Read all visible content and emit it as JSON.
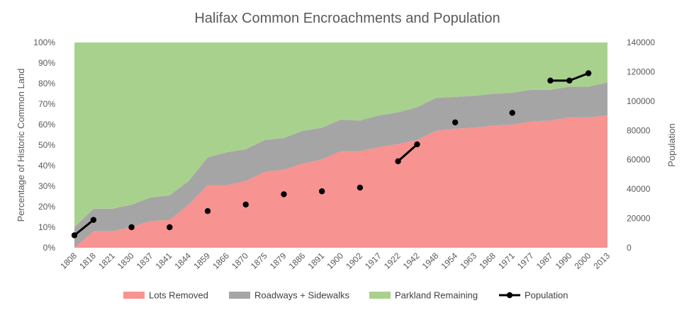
{
  "chart_data": {
    "type": "area",
    "title": "Halifax Common Encroachments and Population",
    "xlabel": "",
    "ylabel": "Percentage of Historic Common Land",
    "y2label": "Population",
    "categories": [
      "1808",
      "1818",
      "1821",
      "1830",
      "1837",
      "1841",
      "1844",
      "1859",
      "1866",
      "1870",
      "1875",
      "1879",
      "1886",
      "1891",
      "1900",
      "1902",
      "1917",
      "1922",
      "1942",
      "1948",
      "1954",
      "1963",
      "1968",
      "1971",
      "1977",
      "1987",
      "1990",
      "2000",
      "2013"
    ],
    "ylim": [
      0,
      100
    ],
    "y2lim": [
      0,
      140000
    ],
    "yticks": [
      "0%",
      "10%",
      "20%",
      "30%",
      "40%",
      "50%",
      "60%",
      "70%",
      "80%",
      "90%",
      "100%"
    ],
    "y2ticks": [
      "0",
      "20000",
      "40000",
      "60000",
      "80000",
      "100000",
      "120000",
      "140000"
    ],
    "series": [
      {
        "name": "Lots Removed",
        "color": "#F79391",
        "kind": "stacked-area",
        "values": [
          0,
          8,
          8,
          10,
          13,
          13.5,
          21,
          30.5,
          30.5,
          32.5,
          37,
          38,
          41,
          43,
          47,
          47,
          49,
          50.5,
          52.5,
          57,
          58,
          58.5,
          59.5,
          60,
          61.5,
          62,
          63.5,
          63.5,
          64.5
        ]
      },
      {
        "name": "Roadways + Sidewalks",
        "color": "#A5A5A5",
        "kind": "stacked-area",
        "values": [
          10,
          11,
          11,
          11,
          11.5,
          12,
          11.5,
          13.5,
          16,
          15.5,
          15.5,
          15.5,
          16,
          15.5,
          15.5,
          15,
          15.5,
          15.5,
          16,
          16,
          15.5,
          15.5,
          15.5,
          15.5,
          15.5,
          15,
          15,
          15,
          16
        ]
      },
      {
        "name": "Parkland Remaining",
        "color": "#A9D18E",
        "kind": "stacked-area",
        "values": [
          90,
          81,
          81,
          79,
          75.5,
          74.5,
          67.5,
          56,
          53.5,
          52,
          47.5,
          46.5,
          43,
          41.5,
          37.5,
          38,
          35.5,
          34,
          31.5,
          27,
          26.5,
          26,
          25,
          24.5,
          23,
          23,
          21.5,
          21.5,
          19.5
        ]
      },
      {
        "name": "Population",
        "color": "#000000",
        "kind": "line-markers",
        "axis": "right",
        "values": [
          8500,
          19000,
          null,
          14000,
          null,
          14000,
          null,
          25000,
          null,
          29500,
          null,
          36500,
          null,
          38500,
          null,
          41000,
          null,
          59000,
          70500,
          null,
          85500,
          null,
          null,
          92000,
          null,
          114000,
          114000,
          119000,
          null
        ]
      }
    ]
  }
}
